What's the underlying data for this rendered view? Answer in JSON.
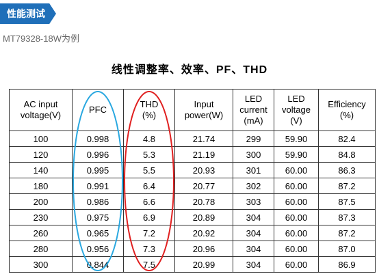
{
  "header": {
    "tag": "性能测试",
    "subtitle": "MT79328-18W为例"
  },
  "table": {
    "title": "线性调整率、效率、PF、THD",
    "columns": [
      [
        "AC input",
        "voltage(V)"
      ],
      [
        "PFC"
      ],
      [
        "THD",
        "(%)"
      ],
      [
        "Input",
        "power(W)"
      ],
      [
        "LED",
        "current",
        "(mA)"
      ],
      [
        "LED",
        "voltage",
        "(V)"
      ],
      [
        "Efficiency",
        "(%)"
      ]
    ],
    "rows": [
      [
        "100",
        "0.998",
        "4.8",
        "21.74",
        "299",
        "59.90",
        "82.4"
      ],
      [
        "120",
        "0.996",
        "5.3",
        "21.19",
        "300",
        "59.90",
        "84.8"
      ],
      [
        "140",
        "0.995",
        "5.5",
        "20.93",
        "301",
        "60.00",
        "86.3"
      ],
      [
        "180",
        "0.991",
        "6.4",
        "20.77",
        "302",
        "60.00",
        "87.2"
      ],
      [
        "200",
        "0.986",
        "6.6",
        "20.78",
        "303",
        "60.00",
        "87.5"
      ],
      [
        "230",
        "0.975",
        "6.9",
        "20.89",
        "304",
        "60.00",
        "87.3"
      ],
      [
        "260",
        "0.965",
        "7.2",
        "20.92",
        "304",
        "60.00",
        "87.2"
      ],
      [
        "280",
        "0.956",
        "7.3",
        "20.96",
        "304",
        "60.00",
        "87.0"
      ],
      [
        "300",
        "0.844",
        "7.5",
        "20.99",
        "304",
        "60.00",
        "86.9"
      ]
    ]
  }
}
